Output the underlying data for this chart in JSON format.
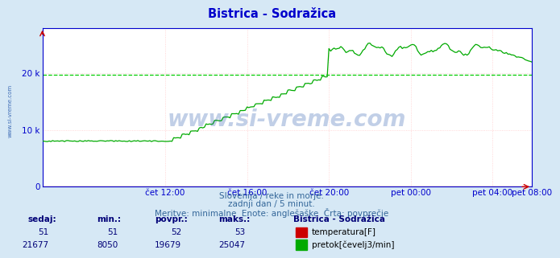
{
  "title": "Bistrica - Sodražica",
  "title_color": "#0000cc",
  "bg_color": "#d6e8f5",
  "plot_bg_color": "#ffffff",
  "avg_line_color": "#00cc00",
  "avg_line_style": "dashed",
  "avg_value": 19679,
  "y_max": 28000,
  "y_min": 0,
  "y_ticks": [
    0,
    10000,
    20000
  ],
  "y_tick_labels": [
    "0",
    "10 k",
    "20 k"
  ],
  "tick_color": "#0000cc",
  "axis_color": "#0000cc",
  "flow_color": "#00aa00",
  "temp_color": "#cc0000",
  "watermark_color": "#2255aa",
  "left_label": "www.si-vreme.com",
  "watermark": "www.si-vreme.com",
  "subtitle1": "Slovenija / reke in morje.",
  "subtitle2": "zadnji dan / 5 minut.",
  "subtitle3": "Meritve: minimalne  Enote: anglešaške  Črta: povprečje",
  "subtitle_color": "#336699",
  "footer_label": "Bistrica - Sodražica",
  "footer_color": "#000077",
  "legend_temp_label": "temperatura[F]",
  "legend_flow_label": "pretok[čevelj3/min]",
  "sedaj_temp": 51,
  "min_temp": 51,
  "povpr_temp": 52,
  "maks_temp": 53,
  "sedaj_flow": 21677,
  "min_flow": 8050,
  "povpr_flow": 19679,
  "maks_flow": 25047,
  "n_points": 288,
  "x_tick_labels": [
    "čet 12:00",
    "čet 16:00",
    "čet 20:00",
    "pet 00:00",
    "pet 04:00",
    "pet 08:00"
  ],
  "x_tick_positions": [
    72,
    120,
    168,
    216,
    264,
    287
  ]
}
